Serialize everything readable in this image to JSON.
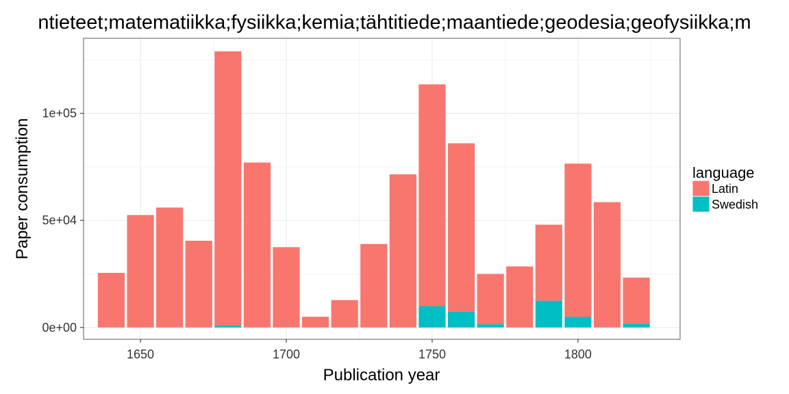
{
  "chart_data": {
    "type": "bar",
    "stacked": true,
    "title": "ntieteet;matematiikka;fysiikka;kemia;tähtitiede;maantiede;geodesia;geofysiikka;m",
    "xlabel": "Publication year",
    "ylabel": "Paper consumption",
    "x": [
      1640,
      1650,
      1660,
      1670,
      1680,
      1690,
      1700,
      1710,
      1720,
      1730,
      1740,
      1750,
      1760,
      1770,
      1780,
      1790,
      1800,
      1810,
      1820
    ],
    "bar_width": 9.2,
    "series": [
      {
        "name": "Latin",
        "color": "#F8766D",
        "values": [
          25500,
          52500,
          56000,
          40500,
          128000,
          77000,
          37500,
          5000,
          12800,
          39000,
          71500,
          103500,
          78500,
          23500,
          28500,
          35500,
          71500,
          58500,
          21500
        ]
      },
      {
        "name": "Swedish",
        "color": "#00BFC4",
        "values": [
          0,
          0,
          0,
          0,
          900,
          0,
          0,
          0,
          0,
          0,
          0,
          10000,
          7500,
          1500,
          0,
          12500,
          5000,
          0,
          1800
        ]
      }
    ],
    "xlim": [
      1630.5,
      1835
    ],
    "ylim": [
      -5500,
      135000
    ],
    "x_ticks": [
      1650,
      1700,
      1750,
      1800
    ],
    "x_tick_labels": [
      "1650",
      "1700",
      "1750",
      "1800"
    ],
    "y_ticks": [
      0,
      50000,
      100000
    ],
    "y_tick_labels": [
      "0e+00",
      "5e+04",
      "1e+05"
    ],
    "grid": true,
    "legend": {
      "title": "language",
      "position": "right",
      "entries": [
        "Latin",
        "Swedish"
      ]
    }
  }
}
